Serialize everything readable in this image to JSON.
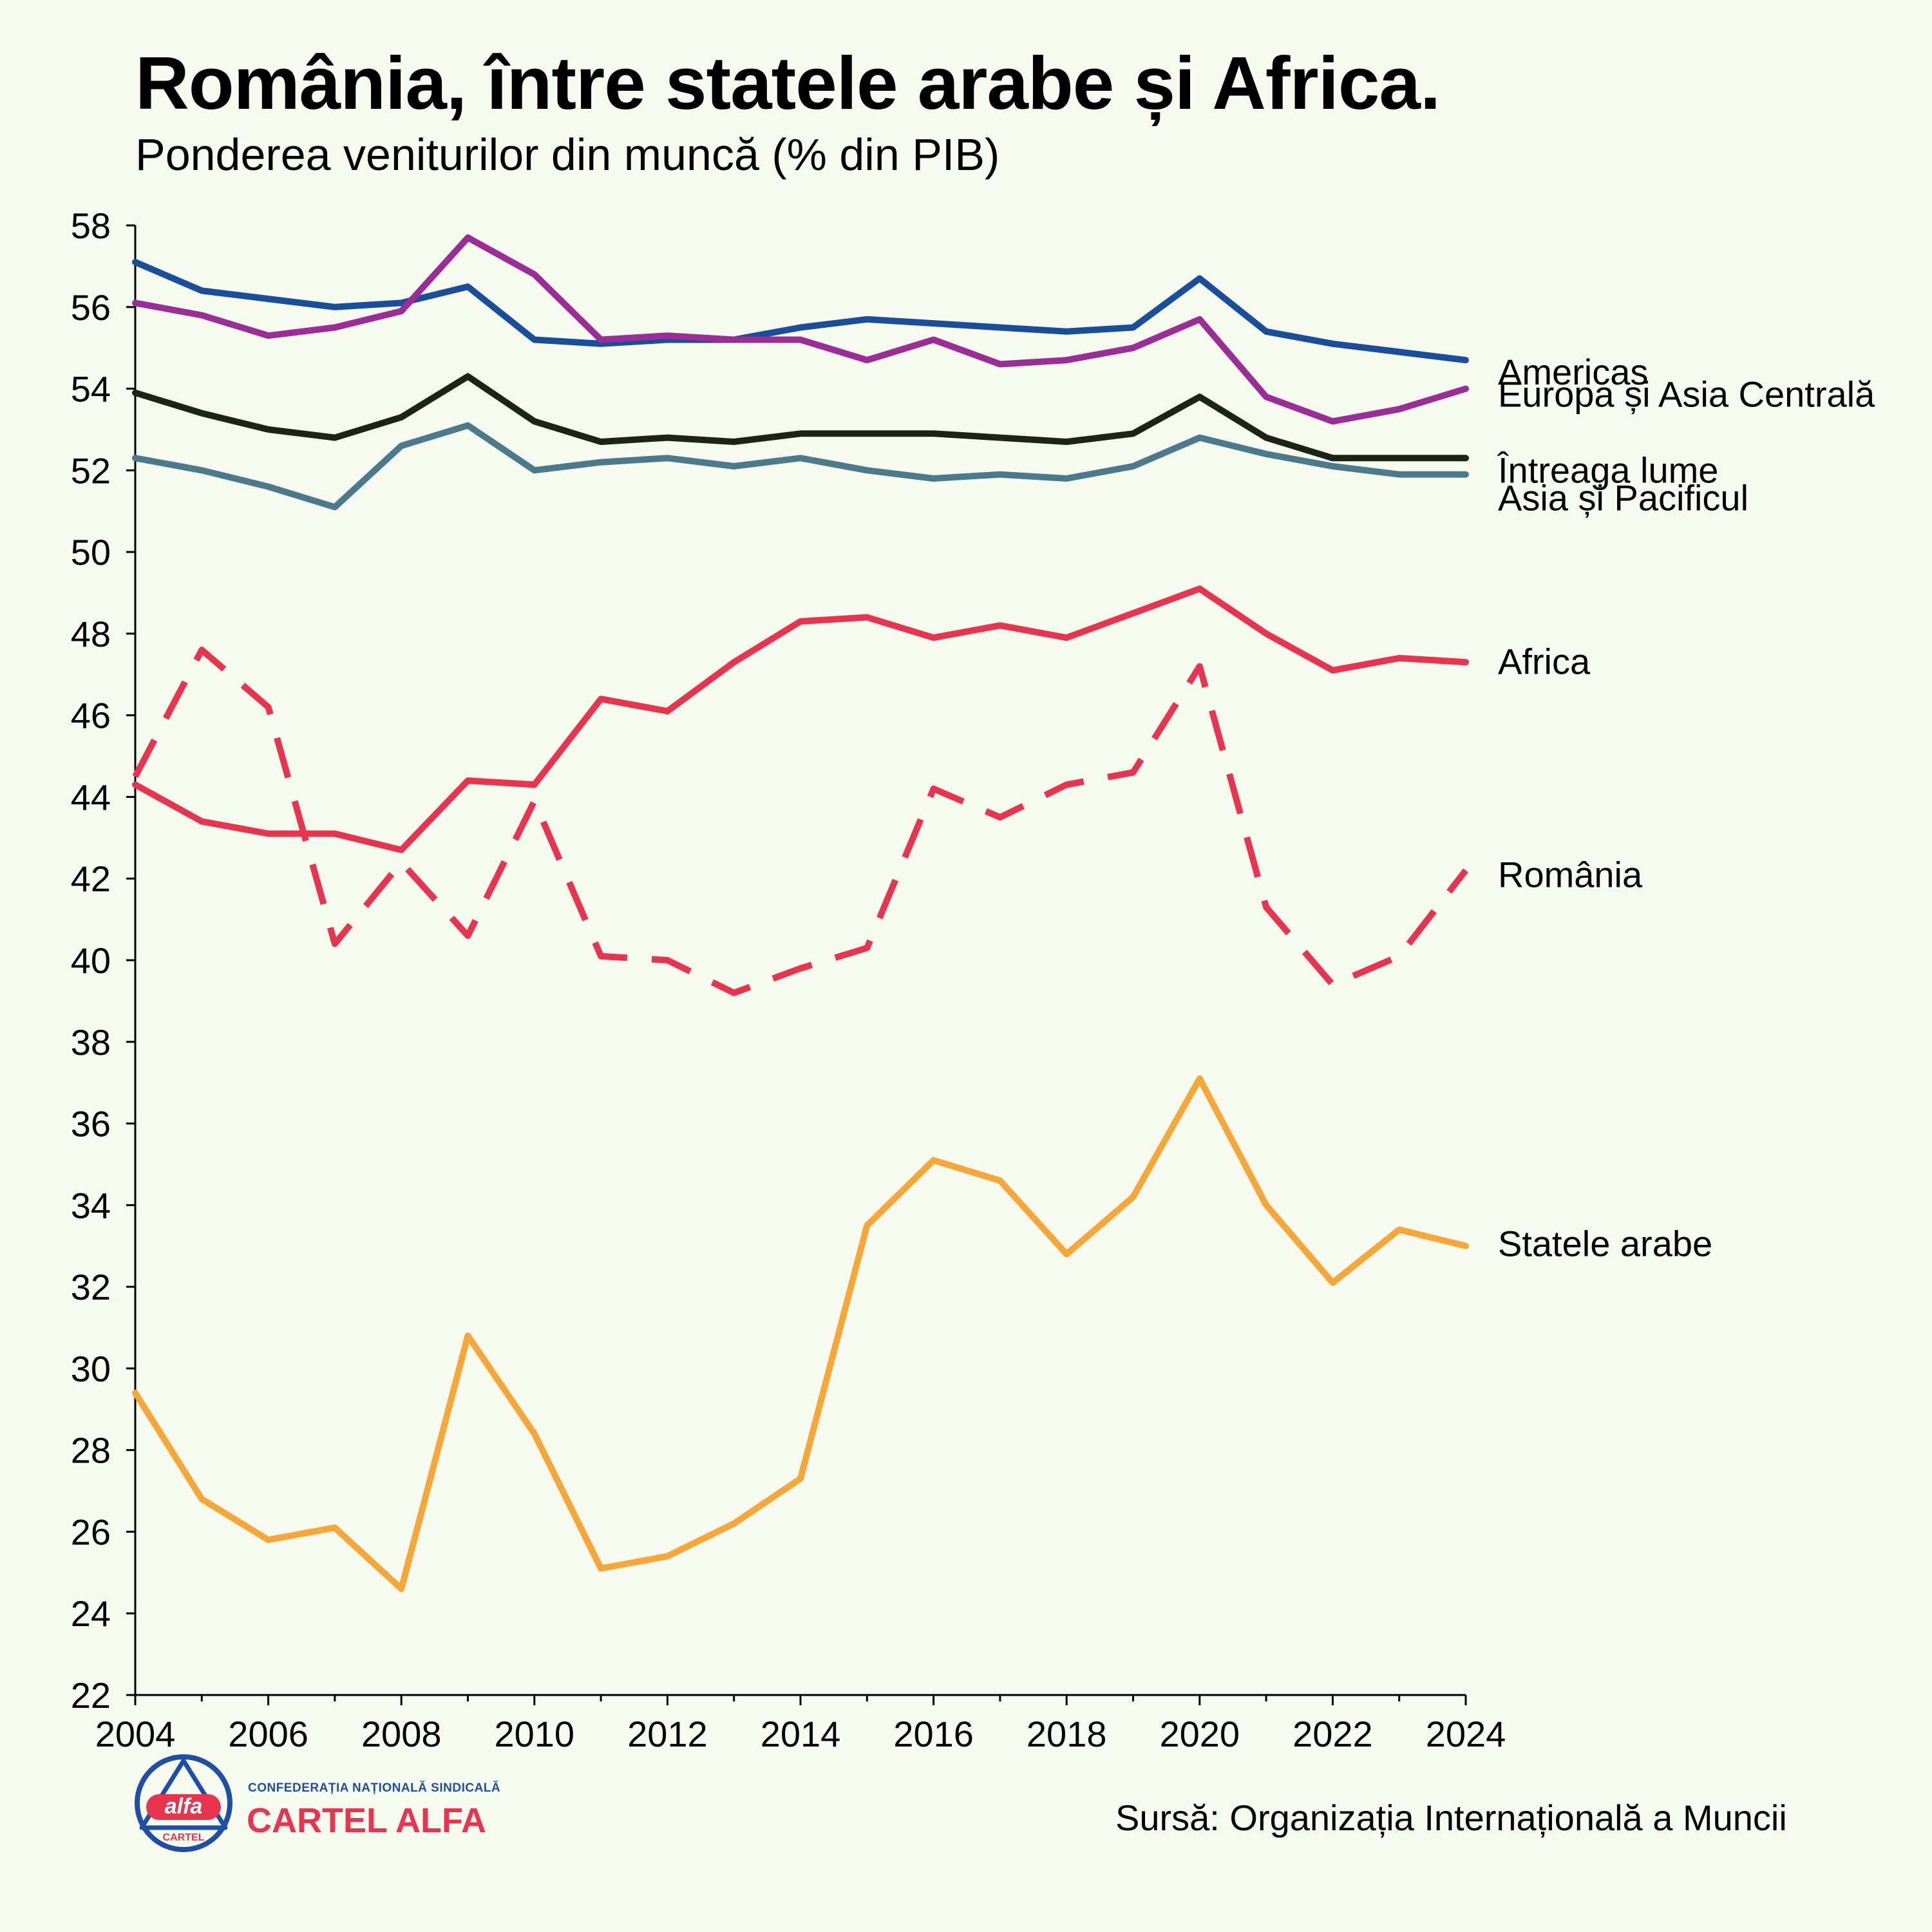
{
  "header": {
    "title": "România, între statele arabe și Africa.",
    "subtitle": "Ponderea veniturilor din muncă (% din PIB)"
  },
  "footer": {
    "source": "Sursă: Organizația Internațională a Muncii",
    "org_top": "CONFEDERAȚIA NAȚIONALĂ SINDICALĂ",
    "org_name": "CARTEL ALFA",
    "logo_word": "alfa",
    "logo_sub": "CARTEL"
  },
  "colors": {
    "background": "#f7fbef",
    "org_top": "#1f4fa3",
    "org_name": "#e8354f",
    "logo_ring": "#1f4fa3",
    "logo_fill": "#e8354f"
  },
  "chart_data": {
    "type": "line",
    "title": "România, între statele arabe și Africa.",
    "subtitle": "Ponderea veniturilor din muncă (% din PIB)",
    "xlabel": "",
    "ylabel": "",
    "x": [
      2004,
      2005,
      2006,
      2007,
      2008,
      2009,
      2010,
      2011,
      2012,
      2013,
      2014,
      2015,
      2016,
      2017,
      2018,
      2019,
      2020,
      2021,
      2022,
      2023,
      2024
    ],
    "x_ticks": [
      "2004",
      "2006",
      "2008",
      "2010",
      "2012",
      "2014",
      "2016",
      "2018",
      "2020",
      "2022",
      "2024"
    ],
    "xlim": [
      2004,
      2024
    ],
    "y_ticks": [
      "22",
      "24",
      "26",
      "28",
      "30",
      "32",
      "34",
      "36",
      "38",
      "40",
      "42",
      "44",
      "46",
      "48",
      "50",
      "52",
      "54",
      "56",
      "58"
    ],
    "ylim": [
      22,
      58
    ],
    "grid": false,
    "legend": "direct labels at right end of lines",
    "series": [
      {
        "name": "Americas",
        "color": "#1a4e9b",
        "dashed": false,
        "values": [
          57.1,
          56.4,
          56.2,
          56.0,
          56.1,
          56.5,
          55.2,
          55.1,
          55.2,
          55.2,
          55.5,
          55.7,
          55.6,
          55.5,
          55.4,
          55.5,
          56.7,
          55.4,
          55.1,
          54.9,
          54.7
        ]
      },
      {
        "name": "Europa și Asia Centrală",
        "color": "#9a2d96",
        "dashed": false,
        "values": [
          56.1,
          55.8,
          55.3,
          55.5,
          55.9,
          57.7,
          56.8,
          55.2,
          55.3,
          55.2,
          55.2,
          54.7,
          55.2,
          54.6,
          54.7,
          55.0,
          55.7,
          53.8,
          53.2,
          53.5,
          54.0
        ]
      },
      {
        "name": "Întreaga lume",
        "color": "#1c2418",
        "dashed": false,
        "values": [
          53.9,
          53.4,
          53.0,
          52.8,
          53.3,
          54.3,
          53.2,
          52.7,
          52.8,
          52.7,
          52.9,
          52.9,
          52.9,
          52.8,
          52.7,
          52.9,
          53.8,
          52.8,
          52.3,
          52.3,
          52.3
        ]
      },
      {
        "name": "Asia și Pacificul",
        "color": "#4a7a8c",
        "dashed": false,
        "values": [
          52.3,
          52.0,
          51.6,
          51.1,
          52.6,
          53.1,
          52.0,
          52.2,
          52.3,
          52.1,
          52.3,
          52.0,
          51.8,
          51.9,
          51.8,
          52.1,
          52.8,
          52.4,
          52.1,
          51.9,
          51.9
        ]
      },
      {
        "name": "Africa",
        "color": "#e8354f",
        "dashed": false,
        "values": [
          44.3,
          43.4,
          43.1,
          43.1,
          42.7,
          44.4,
          44.3,
          46.4,
          46.1,
          47.3,
          48.3,
          48.4,
          47.9,
          48.2,
          47.9,
          48.5,
          49.1,
          48.0,
          47.1,
          47.4,
          47.3
        ]
      },
      {
        "name": "România",
        "color": "#e8354f",
        "dashed": true,
        "values": [
          44.5,
          47.6,
          46.2,
          40.4,
          42.4,
          40.6,
          43.9,
          40.1,
          40.0,
          39.2,
          39.8,
          40.3,
          44.2,
          43.5,
          44.3,
          44.6,
          47.2,
          41.3,
          39.4,
          40.1,
          42.2
        ]
      },
      {
        "name": "Statele arabe",
        "color": "#f5a73a",
        "dashed": false,
        "values": [
          29.4,
          26.8,
          25.8,
          26.1,
          24.6,
          30.8,
          28.4,
          25.1,
          25.4,
          26.2,
          27.3,
          33.5,
          35.1,
          34.6,
          32.8,
          34.2,
          37.1,
          34.0,
          32.1,
          33.4,
          33.0
        ]
      }
    ]
  }
}
